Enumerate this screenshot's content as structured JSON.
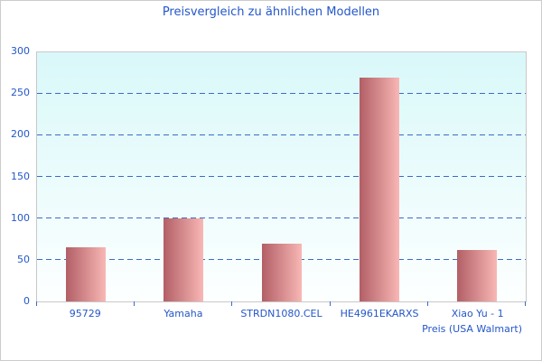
{
  "title": "Preisvergleich zu ähnlichen Modellen",
  "chart_data": {
    "type": "bar",
    "title": "Preisvergleich zu ähnlichen Modellen",
    "categories": [
      "95729",
      "Yamaha",
      "STRDN1080.CEL",
      "HE4961EKARXS",
      "Xiao Yu - 1"
    ],
    "values": [
      65,
      100,
      70,
      270,
      62
    ],
    "xlabel": "Preis (USA Walmart)",
    "ylabel": "",
    "ylim": [
      0,
      300
    ],
    "yticks": [
      0,
      50,
      100,
      150,
      200,
      250,
      300
    ],
    "grid": "horizontal-dashed",
    "legend": "none",
    "bar_orientation": "vertical"
  },
  "colors": {
    "title_text": "#2457c8",
    "axis_text": "#2457c8",
    "gridline": "#3c6bc8",
    "tick": "#3c6bc8",
    "bar_gradient_start": "#b25f66",
    "bar_gradient_end": "#f8b7b4",
    "plot_bg_top": "#d9f8f9",
    "plot_bg_bottom": "#fdffff",
    "plot_border": "#c8c8c8",
    "figure_border": "#cccccc",
    "figure_bg": "#ffffff"
  }
}
